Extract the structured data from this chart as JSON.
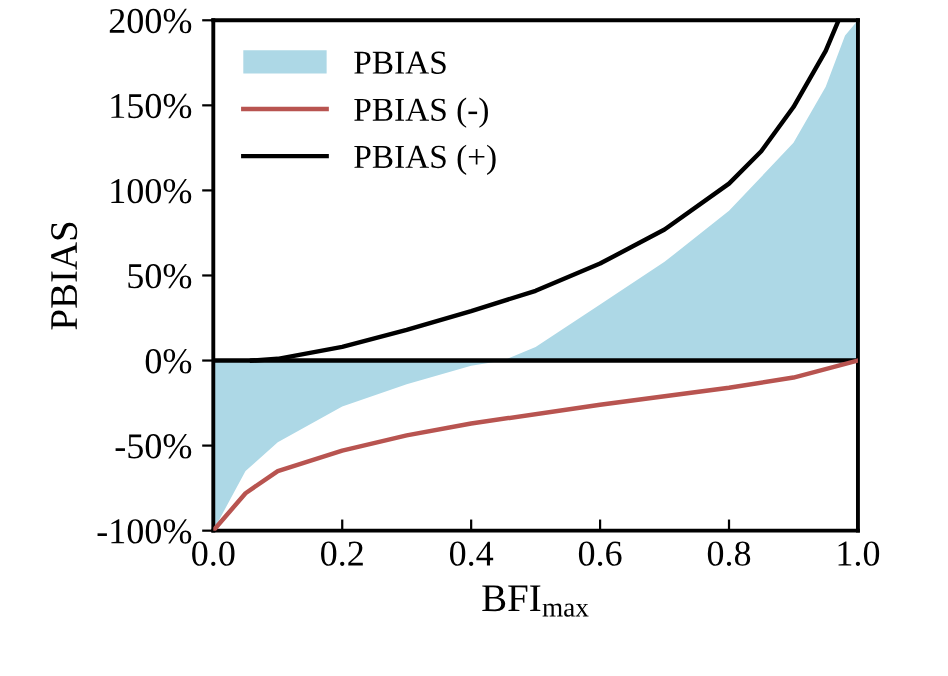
{
  "chart_data": {
    "type": "line",
    "xlabel": "BFI$_{max}$",
    "ylabel": "PBIAS",
    "xlim": [
      0.0,
      1.0
    ],
    "xticks": [
      {
        "value": 0.0,
        "label": "0.0"
      },
      {
        "value": 0.2,
        "label": "0.2"
      },
      {
        "value": 0.4,
        "label": "0.4"
      },
      {
        "value": 0.6,
        "label": "0.6"
      },
      {
        "value": 0.8,
        "label": "0.8"
      },
      {
        "value": 1.0,
        "label": "1.0"
      }
    ],
    "ylim": [
      -100,
      200
    ],
    "yticks": [
      {
        "value": -100,
        "label": "-100%"
      },
      {
        "value": -50,
        "label": "-50%"
      },
      {
        "value": 0,
        "label": "0%"
      },
      {
        "value": 50,
        "label": "50%"
      },
      {
        "value": 100,
        "label": "100%"
      },
      {
        "value": 150,
        "label": "150%"
      },
      {
        "value": 200,
        "label": "200%"
      }
    ],
    "grid": false,
    "legend": "top left",
    "ref_lines": [
      {
        "axis": "y",
        "value": 0,
        "color": "#000000"
      }
    ],
    "series": [
      {
        "name": "PBIAS",
        "type": "area",
        "color": "#add8e6",
        "x": [
          0.0,
          0.05,
          0.1,
          0.2,
          0.3,
          0.4,
          0.45,
          0.5,
          0.6,
          0.7,
          0.8,
          0.9,
          0.95,
          0.98,
          1.0
        ],
        "values": [
          -100,
          -65,
          -48,
          -27,
          -14,
          -3,
          0,
          8,
          33,
          58,
          88,
          128,
          161,
          191,
          200
        ]
      },
      {
        "name": "PBIAS (-)",
        "color": "#b85450",
        "x": [
          0.0,
          0.05,
          0.1,
          0.2,
          0.3,
          0.4,
          0.6,
          0.8,
          0.9,
          1.0
        ],
        "values": [
          -100,
          -78,
          -65,
          -53,
          -44,
          -37,
          -26,
          -16,
          -10,
          0
        ]
      },
      {
        "name": "PBIAS (+)",
        "color": "#000000",
        "x": [
          0.06,
          0.1,
          0.2,
          0.3,
          0.4,
          0.5,
          0.6,
          0.7,
          0.8,
          0.85,
          0.9,
          0.95,
          0.97
        ],
        "values": [
          0,
          1,
          8,
          18,
          29,
          41,
          57,
          77,
          104,
          123,
          149,
          182,
          200
        ]
      }
    ]
  }
}
